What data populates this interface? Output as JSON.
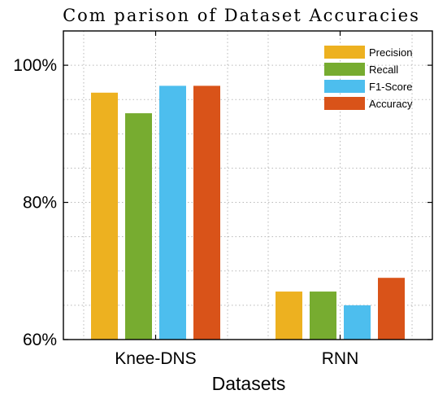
{
  "chart_data": {
    "type": "bar",
    "title": "Com parison of Dataset Accuracies",
    "xlabel": "Datasets",
    "ylabel": "",
    "categories": [
      "Knee-DNS",
      "RNN"
    ],
    "series": [
      {
        "name": "Precision",
        "color": "#EDB120",
        "values": [
          96,
          67
        ]
      },
      {
        "name": "Recall",
        "color": "#77AC30",
        "values": [
          93,
          67
        ]
      },
      {
        "name": "F1-Score",
        "color": "#4DBEEE",
        "values": [
          97,
          65
        ]
      },
      {
        "name": "Accuracy",
        "color": "#D95319",
        "values": [
          97,
          69
        ]
      }
    ],
    "ylim": [
      60,
      105
    ],
    "yticks": [
      60,
      80,
      100
    ],
    "ytick_labels": [
      "60%",
      "80%",
      "100%"
    ],
    "grid": true,
    "legend_position": "top-right"
  }
}
